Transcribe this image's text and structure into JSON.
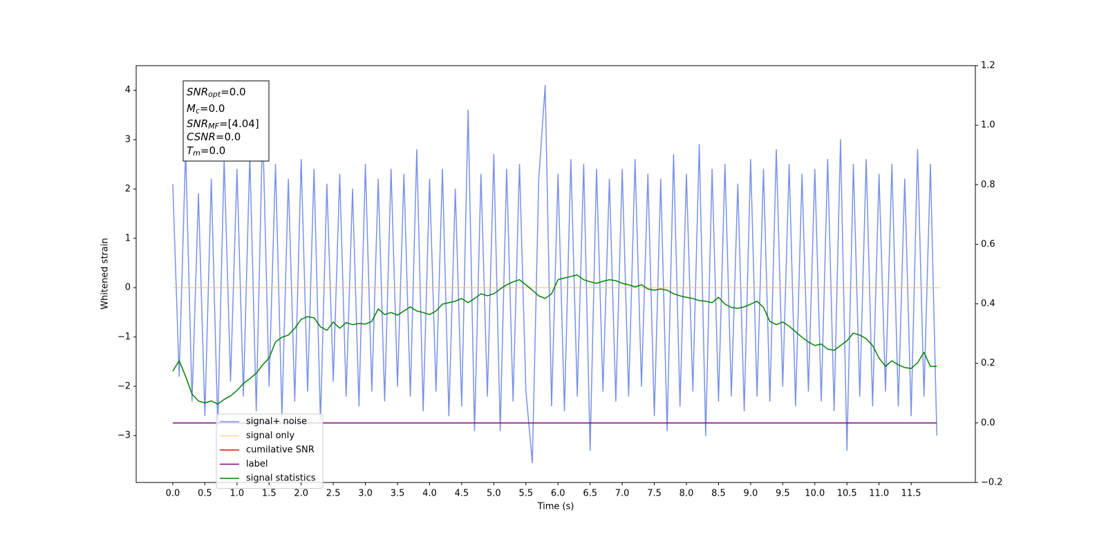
{
  "chart_data": {
    "type": "line",
    "xlabel": "Time (s)",
    "ylabel": "Whitened strain",
    "annotation": [
      {
        "main": "SNR",
        "sub": "opt",
        "rest": "=0.0"
      },
      {
        "main": "M",
        "sub": "c",
        "rest": "=0.0"
      },
      {
        "main": "SNR",
        "sub": "MF",
        "rest": "=[4.04]"
      },
      {
        "main": "CSNR",
        "rest": "=0.0"
      },
      {
        "main": "T",
        "sub": "m",
        "rest": "=0.0"
      }
    ],
    "xlim": [
      -0.57,
      12.5
    ],
    "ylim": [
      -3.95,
      4.5
    ],
    "y2lim": [
      -0.2,
      1.2
    ],
    "xticks": [
      {
        "value": 0,
        "label": "0.0"
      },
      0.5,
      {
        "value": 1,
        "label": "1.0"
      },
      1.5,
      {
        "value": 2,
        "label": "2.0"
      },
      2.5,
      {
        "value": 3,
        "label": "3.0"
      },
      3.5,
      {
        "value": 4,
        "label": "4.0"
      },
      4.5,
      {
        "value": 5,
        "label": "5.0"
      },
      5.5,
      {
        "value": 6,
        "label": "6.0"
      },
      6.5,
      {
        "value": 7,
        "label": "7.0"
      },
      7.5,
      {
        "value": 8,
        "label": "8.0"
      },
      8.5,
      {
        "value": 9,
        "label": "9.0"
      },
      9.5,
      {
        "value": 10,
        "label": "10.0"
      },
      10.5,
      {
        "value": 11,
        "label": "11.0"
      },
      11.5
    ],
    "yticks": [
      {
        "value": -3,
        "label": "−3"
      },
      {
        "value": -2,
        "label": "−2"
      },
      {
        "value": -1,
        "label": "−1"
      },
      0,
      1,
      2,
      3,
      4
    ],
    "y2ticks": [
      {
        "value": -0.2,
        "label": "−0.2"
      },
      {
        "value": 0,
        "label": "0.0"
      },
      0.2,
      0.4,
      0.6,
      0.8,
      {
        "value": 1,
        "label": "1.0"
      },
      1.2
    ],
    "grid": false,
    "legend": "lower left",
    "x": [
      0,
      0.1,
      0.2,
      0.3,
      0.4,
      0.5,
      0.6,
      0.7,
      0.8,
      0.9,
      1,
      1.1,
      1.2,
      1.3,
      1.4,
      1.5,
      1.6,
      1.7,
      1.8,
      1.9,
      2,
      2.1,
      2.2,
      2.3,
      2.4,
      2.5,
      2.6,
      2.7,
      2.8,
      2.9,
      3,
      3.1,
      3.2,
      3.3,
      3.4,
      3.5,
      3.6,
      3.7,
      3.8,
      3.9,
      4,
      4.1,
      4.2,
      4.3,
      4.4,
      4.5,
      4.6,
      4.7,
      4.8,
      4.9,
      5,
      5.1,
      5.2,
      5.3,
      5.4,
      5.5,
      5.6,
      5.7,
      5.8,
      5.9,
      6,
      6.1,
      6.2,
      6.3,
      6.4,
      6.5,
      6.6,
      6.7,
      6.8,
      6.9,
      7,
      7.1,
      7.2,
      7.3,
      7.4,
      7.5,
      7.6,
      7.7,
      7.8,
      7.9,
      8,
      8.1,
      8.2,
      8.3,
      8.4,
      8.5,
      8.6,
      8.7,
      8.8,
      8.9,
      9,
      9.1,
      9.2,
      9.3,
      9.4,
      9.5,
      9.6,
      9.7,
      9.8,
      9.9,
      10,
      10.1,
      10.2,
      10.3,
      10.4,
      10.5,
      10.6,
      10.7,
      10.8,
      10.9,
      11,
      11.1,
      11.2,
      11.3,
      11.4,
      11.5,
      11.6,
      11.7,
      11.8,
      11.9
    ],
    "series": [
      {
        "name": "signal+ noise",
        "color": "#7891e8",
        "values": [
          2.1,
          -1.8,
          2.8,
          -2.3,
          1.9,
          -2.6,
          2.2,
          -2.8,
          2.6,
          -1.9,
          2.4,
          -2.2,
          2.7,
          -2.5,
          3.3,
          -2.0,
          2.5,
          -2.6,
          2.2,
          -2.3,
          2.6,
          -2.1,
          2.4,
          -2.7,
          2.1,
          -1.9,
          2.3,
          -2.2,
          2.0,
          -2.4,
          2.5,
          -2.1,
          2.2,
          -2.3,
          2.4,
          -2.0,
          2.3,
          -2.2,
          2.8,
          -2.5,
          2.2,
          -2.1,
          2.4,
          -2.6,
          2.0,
          -2.4,
          3.6,
          -2.9,
          2.3,
          -2.2,
          2.7,
          -2.9,
          2.4,
          -2.3,
          2.5,
          -2.1,
          -3.55,
          2.2,
          4.1,
          -2.4,
          2.3,
          -2.5,
          2.6,
          -2.2,
          2.5,
          -3.3,
          2.4,
          -2.1,
          2.2,
          -2.3,
          2.4,
          -2.2,
          2.6,
          -2.0,
          2.3,
          -2.6,
          2.2,
          -2.9,
          2.7,
          -2.4,
          2.3,
          -2.1,
          2.9,
          -3.0,
          2.4,
          -2.3,
          2.5,
          -2.2,
          2.1,
          -2.5,
          2.6,
          -2.2,
          2.4,
          -2.3,
          2.8,
          -2.0,
          2.5,
          -2.4,
          2.3,
          -2.1,
          2.4,
          -2.3,
          2.6,
          -2.5,
          3.0,
          -3.3,
          2.5,
          -2.2,
          2.6,
          -2.4,
          2.3,
          -2.1,
          2.5,
          -2.4,
          2.2,
          -2.6,
          2.8,
          -2.2,
          2.5,
          -3.0
        ]
      },
      {
        "name": "signal only",
        "color": "#ffb84d",
        "x": [
          0,
          11.95
        ],
        "values": [
          0,
          0
        ]
      },
      {
        "name": "cumilative SNR",
        "color": "#ff0000"
      },
      {
        "name": "label",
        "color": "#800080",
        "axis": "y2",
        "x": [
          0,
          11.9
        ],
        "values": [
          0,
          0
        ]
      },
      {
        "name": "signal statistics",
        "color": "#008000",
        "axis": "y2",
        "values": [
          0.174,
          0.209,
          0.156,
          0.097,
          0.074,
          0.067,
          0.074,
          0.063,
          0.079,
          0.091,
          0.109,
          0.132,
          0.149,
          0.167,
          0.195,
          0.218,
          0.272,
          0.288,
          0.295,
          0.318,
          0.348,
          0.357,
          0.353,
          0.323,
          0.311,
          0.339,
          0.318,
          0.337,
          0.33,
          0.334,
          0.332,
          0.341,
          0.383,
          0.364,
          0.371,
          0.362,
          0.376,
          0.39,
          0.376,
          0.371,
          0.364,
          0.376,
          0.399,
          0.404,
          0.409,
          0.418,
          0.404,
          0.418,
          0.434,
          0.427,
          0.434,
          0.45,
          0.464,
          0.474,
          0.481,
          0.464,
          0.446,
          0.427,
          0.418,
          0.434,
          0.481,
          0.487,
          0.492,
          0.497,
          0.481,
          0.474,
          0.469,
          0.476,
          0.481,
          0.478,
          0.469,
          0.464,
          0.457,
          0.464,
          0.45,
          0.446,
          0.45,
          0.446,
          0.434,
          0.427,
          0.422,
          0.418,
          0.411,
          0.409,
          0.404,
          0.422,
          0.399,
          0.388,
          0.385,
          0.39,
          0.399,
          0.409,
          0.388,
          0.341,
          0.33,
          0.339,
          0.325,
          0.306,
          0.288,
          0.272,
          0.26,
          0.265,
          0.248,
          0.244,
          0.26,
          0.276,
          0.302,
          0.295,
          0.283,
          0.26,
          0.218,
          0.19,
          0.209,
          0.195,
          0.186,
          0.183,
          0.202,
          0.237,
          0.19,
          0.19
        ]
      }
    ]
  }
}
